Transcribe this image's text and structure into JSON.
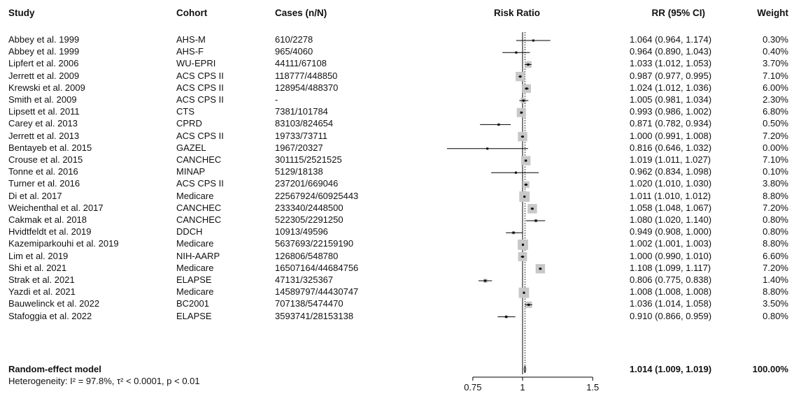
{
  "headers": {
    "study": "Study",
    "cohort": "Cohort",
    "cases": "Cases (n/N)",
    "plot": "Risk Ratio",
    "rr": "RR (95% CI)",
    "weight": "Weight"
  },
  "rows": [
    {
      "study": "Abbey et al. 1999",
      "cohort": "AHS-M",
      "cases": "610/2278",
      "rr_text": "1.064 (0.964, 1.174)",
      "weight": "0.30%"
    },
    {
      "study": "Abbey et al. 1999",
      "cohort": "AHS-F",
      "cases": "965/4060",
      "rr_text": "0.964 (0.890, 1.043)",
      "weight": "0.40%"
    },
    {
      "study": "Lipfert et al. 2006",
      "cohort": "WU-EPRI",
      "cases": "44111/67108",
      "rr_text": "1.033 (1.012, 1.053)",
      "weight": "3.70%"
    },
    {
      "study": "Jerrett et al. 2009",
      "cohort": "ACS CPS II",
      "cases": "118777/448850",
      "rr_text": "0.987 (0.977, 0.995)",
      "weight": "7.10%"
    },
    {
      "study": "Krewski et al. 2009",
      "cohort": "ACS CPS II",
      "cases": "128954/488370",
      "rr_text": "1.024 (1.012, 1.036)",
      "weight": "6.00%"
    },
    {
      "study": "Smith et al. 2009",
      "cohort": "ACS CPS II",
      "cases": "-",
      "rr_text": "1.005 (0.981, 1.034)",
      "weight": "2.30%"
    },
    {
      "study": "Lipsett et al. 2011",
      "cohort": "CTS",
      "cases": "7381/101784",
      "rr_text": "0.993 (0.986, 1.002)",
      "weight": "6.80%"
    },
    {
      "study": "Carey et al. 2013",
      "cohort": "CPRD",
      "cases": "83103/824654",
      "rr_text": "0.871 (0.782, 0.934)",
      "weight": "0.50%"
    },
    {
      "study": "Jerrett et al. 2013",
      "cohort": "ACS CPS II",
      "cases": "19733/73711",
      "rr_text": "1.000 (0.991, 1.008)",
      "weight": "7.20%"
    },
    {
      "study": "Bentayeb et al. 2015",
      "cohort": "GAZEL",
      "cases": "1967/20327",
      "rr_text": "0.816 (0.646, 1.032)",
      "weight": "0.00%"
    },
    {
      "study": "Crouse et al. 2015",
      "cohort": "CANCHEC",
      "cases": "301115/2521525",
      "rr_text": "1.019 (1.011, 1.027)",
      "weight": "7.10%"
    },
    {
      "study": "Tonne et al. 2016",
      "cohort": "MINAP",
      "cases": "5129/18138",
      "rr_text": "0.962 (0.834, 1.098)",
      "weight": "0.10%"
    },
    {
      "study": "Turner et al. 2016",
      "cohort": "ACS CPS II",
      "cases": "237201/669046",
      "rr_text": "1.020 (1.010, 1.030)",
      "weight": "3.80%"
    },
    {
      "study": "Di et al. 2017",
      "cohort": "Medicare",
      "cases": "22567924/60925443",
      "rr_text": "1.011 (1.010, 1.012)",
      "weight": "8.80%"
    },
    {
      "study": "Weichenthal et al. 2017",
      "cohort": "CANCHEC",
      "cases": "233340/2448500",
      "rr_text": "1.058 (1.048, 1.067)",
      "weight": "7.20%"
    },
    {
      "study": "Cakmak et al. 2018",
      "cohort": "CANCHEC",
      "cases": "522305/2291250",
      "rr_text": "1.080 (1.020, 1.140)",
      "weight": "0.80%"
    },
    {
      "study": "Hvidtfeldt et al. 2019",
      "cohort": "DDCH",
      "cases": "10913/49596",
      "rr_text": "0.949 (0.908, 1.000)",
      "weight": "0.80%"
    },
    {
      "study": "Kazemiparkouhi et al. 2019",
      "cohort": "Medicare",
      "cases": "5637693/22159190",
      "rr_text": "1.002 (1.001, 1.003)",
      "weight": "8.80%"
    },
    {
      "study": "Lim et al. 2019",
      "cohort": "NIH-AARP",
      "cases": "126806/548780",
      "rr_text": "1.000 (0.990, 1.010)",
      "weight": "6.60%"
    },
    {
      "study": "Shi et al. 2021",
      "cohort": "Medicare",
      "cases": "16507164/44684756",
      "rr_text": "1.108 (1.099, 1.117)",
      "weight": "7.20%"
    },
    {
      "study": "Strak et al. 2021",
      "cohort": "ELAPSE",
      "cases": "47131/325367",
      "rr_text": "0.806 (0.775, 0.838)",
      "weight": "1.40%"
    },
    {
      "study": "Yazdi et al. 2021",
      "cohort": "Medicare",
      "cases": "14589797/44430747",
      "rr_text": "1.008 (1.008, 1.008)",
      "weight": "8.80%"
    },
    {
      "study": "Bauwelinck et al. 2022",
      "cohort": "BC2001",
      "cases": "707138/5474470",
      "rr_text": "1.036 (1.014, 1.058)",
      "weight": "3.50%"
    },
    {
      "study": "Stafoggia et al. 2022",
      "cohort": "ELAPSE",
      "cases": "3593741/28153138",
      "rr_text": "0.910 (0.866, 0.959)",
      "weight": "0.80%"
    }
  ],
  "summary": {
    "label": "Random-effect model",
    "rr_text": "1.014 (1.009, 1.019)",
    "weight": "100.00%",
    "heterogeneity": "Heterogeneity: I² = 97.8%, τ² < 0.0001, p < 0.01"
  },
  "chart_data": {
    "type": "forest",
    "title": "Risk Ratio",
    "x_ticks": [
      0.75,
      1,
      1.5
    ],
    "x_tick_labels": [
      "0.75",
      "1",
      "1.5"
    ],
    "xlim": [
      0.75,
      1.5
    ],
    "reference_line": 1,
    "summary_line": 1.014,
    "studies": [
      {
        "label": "Abbey et al. 1999 AHS-M",
        "rr": 1.064,
        "lo": 0.964,
        "hi": 1.174,
        "weight": 0.3
      },
      {
        "label": "Abbey et al. 1999 AHS-F",
        "rr": 0.964,
        "lo": 0.89,
        "hi": 1.043,
        "weight": 0.4
      },
      {
        "label": "Lipfert et al. 2006",
        "rr": 1.033,
        "lo": 1.012,
        "hi": 1.053,
        "weight": 3.7
      },
      {
        "label": "Jerrett et al. 2009",
        "rr": 0.987,
        "lo": 0.977,
        "hi": 0.995,
        "weight": 7.1
      },
      {
        "label": "Krewski et al. 2009",
        "rr": 1.024,
        "lo": 1.012,
        "hi": 1.036,
        "weight": 6.0
      },
      {
        "label": "Smith et al. 2009",
        "rr": 1.005,
        "lo": 0.981,
        "hi": 1.034,
        "weight": 2.3
      },
      {
        "label": "Lipsett et al. 2011",
        "rr": 0.993,
        "lo": 0.986,
        "hi": 1.002,
        "weight": 6.8
      },
      {
        "label": "Carey et al. 2013",
        "rr": 0.871,
        "lo": 0.782,
        "hi": 0.934,
        "weight": 0.5
      },
      {
        "label": "Jerrett et al. 2013",
        "rr": 1.0,
        "lo": 0.991,
        "hi": 1.008,
        "weight": 7.2
      },
      {
        "label": "Bentayeb et al. 2015",
        "rr": 0.816,
        "lo": 0.646,
        "hi": 1.032,
        "weight": 0.0
      },
      {
        "label": "Crouse et al. 2015",
        "rr": 1.019,
        "lo": 1.011,
        "hi": 1.027,
        "weight": 7.1
      },
      {
        "label": "Tonne et al. 2016",
        "rr": 0.962,
        "lo": 0.834,
        "hi": 1.098,
        "weight": 0.1
      },
      {
        "label": "Turner et al. 2016",
        "rr": 1.02,
        "lo": 1.01,
        "hi": 1.03,
        "weight": 3.8
      },
      {
        "label": "Di et al. 2017",
        "rr": 1.011,
        "lo": 1.01,
        "hi": 1.012,
        "weight": 8.8
      },
      {
        "label": "Weichenthal et al. 2017",
        "rr": 1.058,
        "lo": 1.048,
        "hi": 1.067,
        "weight": 7.2
      },
      {
        "label": "Cakmak et al. 2018",
        "rr": 1.08,
        "lo": 1.02,
        "hi": 1.14,
        "weight": 0.8
      },
      {
        "label": "Hvidtfeldt et al. 2019",
        "rr": 0.949,
        "lo": 0.908,
        "hi": 1.0,
        "weight": 0.8
      },
      {
        "label": "Kazemiparkouhi et al. 2019",
        "rr": 1.002,
        "lo": 1.001,
        "hi": 1.003,
        "weight": 8.8
      },
      {
        "label": "Lim et al. 2019",
        "rr": 1.0,
        "lo": 0.99,
        "hi": 1.01,
        "weight": 6.6
      },
      {
        "label": "Shi et al. 2021",
        "rr": 1.108,
        "lo": 1.099,
        "hi": 1.117,
        "weight": 7.2
      },
      {
        "label": "Strak et al. 2021",
        "rr": 0.806,
        "lo": 0.775,
        "hi": 0.838,
        "weight": 1.4
      },
      {
        "label": "Yazdi et al. 2021",
        "rr": 1.008,
        "lo": 1.008,
        "hi": 1.008,
        "weight": 8.8
      },
      {
        "label": "Bauwelinck et al. 2022",
        "rr": 1.036,
        "lo": 1.014,
        "hi": 1.058,
        "weight": 3.5
      },
      {
        "label": "Stafoggia et al. 2022",
        "rr": 0.91,
        "lo": 0.866,
        "hi": 0.959,
        "weight": 0.8
      }
    ],
    "summary": {
      "label": "Random-effect model",
      "rr": 1.014,
      "lo": 1.009,
      "hi": 1.019,
      "weight": 100.0
    },
    "colors": {
      "box": "#c8c8c8",
      "line": "#000000",
      "ref_line": "#000000"
    }
  }
}
